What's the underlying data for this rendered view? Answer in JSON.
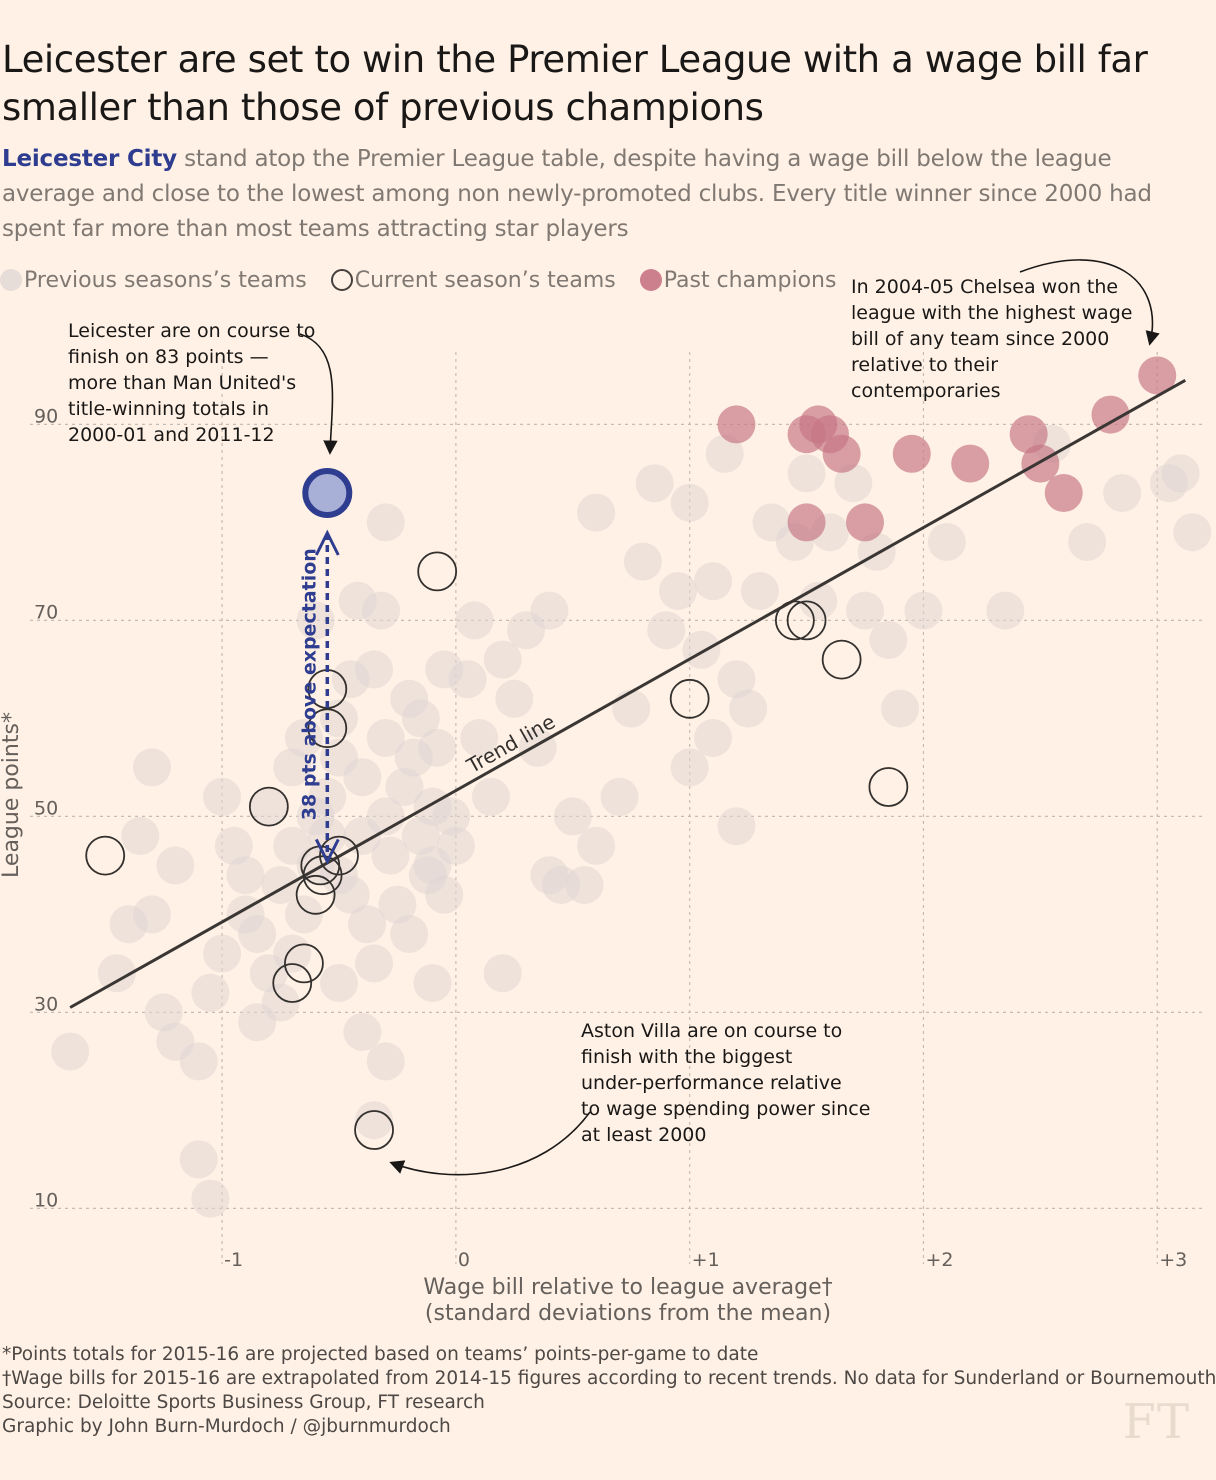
{
  "title": "Leicester are set to win the Premier League with a wage bill far smaller than those of previous champions",
  "subtitle": {
    "highlight": "Leicester City",
    "rest": " stand atop the Premier League table, despite having a wage bill below the league average and close to the lowest among non newly-promoted clubs. Every title winner since 2000 had spent far more than most teams attracting star players"
  },
  "legend": [
    {
      "label": "Previous seasons’s teams",
      "style": "prev"
    },
    {
      "label": "Current season’s teams",
      "style": "cur"
    },
    {
      "label": "Past champions",
      "style": "champ"
    }
  ],
  "colors": {
    "background": "#fff1e5",
    "previous": "#e0d6d3",
    "current_stroke": "#33302e",
    "champion": "#c67685",
    "leicester": "#2e3d8f",
    "leicester_fill": "#a9b0d8",
    "trend": "#3a3634",
    "grid": "#c6bcb3"
  },
  "chart_data": {
    "type": "scatter",
    "xlabel": "Wage bill relative to league average†",
    "xlabel2": "(standard deviations from the mean)",
    "ylabel": "League points*",
    "xlim": [
      -1.95,
      3.2
    ],
    "ylim": [
      8,
      98
    ],
    "x_ticks": [
      {
        "v": -1,
        "label": "-1"
      },
      {
        "v": 0,
        "label": "0"
      },
      {
        "v": 1,
        "label": "+1"
      },
      {
        "v": 2,
        "label": "+2"
      },
      {
        "v": 3,
        "label": "+3"
      }
    ],
    "y_ticks": [
      {
        "v": 10,
        "label": "10"
      },
      {
        "v": 30,
        "label": "30"
      },
      {
        "v": 50,
        "label": "50"
      },
      {
        "v": 70,
        "label": "70"
      },
      {
        "v": 90,
        "label": "90"
      }
    ],
    "trend_line": {
      "label": "Trend line",
      "from": [
        -1.65,
        30.5
      ],
      "to": [
        3.12,
        94.5
      ]
    },
    "series": [
      {
        "name": "Previous seasons’s teams",
        "points": [
          [
            -1.65,
            26
          ],
          [
            -1.45,
            34
          ],
          [
            -1.4,
            39
          ],
          [
            -1.3,
            40
          ],
          [
            -1.35,
            48
          ],
          [
            -1.2,
            45
          ],
          [
            -1.25,
            30
          ],
          [
            -1.2,
            27
          ],
          [
            -1.1,
            25
          ],
          [
            -1.05,
            32
          ],
          [
            -1.0,
            36
          ],
          [
            -1.0,
            52
          ],
          [
            -0.95,
            47
          ],
          [
            -0.9,
            40
          ],
          [
            -0.9,
            44
          ],
          [
            -0.85,
            38
          ],
          [
            -0.85,
            29
          ],
          [
            -0.8,
            51
          ],
          [
            -0.8,
            34
          ],
          [
            -0.75,
            31
          ],
          [
            -0.75,
            43
          ],
          [
            -0.7,
            47
          ],
          [
            -0.7,
            55
          ],
          [
            -0.7,
            36
          ],
          [
            -0.65,
            40
          ],
          [
            -0.65,
            58
          ],
          [
            -0.6,
            45
          ],
          [
            -0.6,
            50
          ],
          [
            -0.55,
            48
          ],
          [
            -0.55,
            52
          ],
          [
            -0.5,
            44
          ],
          [
            -0.5,
            56
          ],
          [
            -0.5,
            60
          ],
          [
            -0.45,
            42
          ],
          [
            -0.45,
            64
          ],
          [
            -0.42,
            72
          ],
          [
            -0.4,
            54
          ],
          [
            -0.4,
            48
          ],
          [
            -0.38,
            39
          ],
          [
            -0.35,
            35
          ],
          [
            -0.35,
            65
          ],
          [
            -0.32,
            71
          ],
          [
            -0.3,
            50
          ],
          [
            -0.3,
            58
          ],
          [
            -0.28,
            46
          ],
          [
            -0.25,
            41
          ],
          [
            -0.22,
            53
          ],
          [
            -0.2,
            62
          ],
          [
            -0.18,
            56
          ],
          [
            -0.15,
            48
          ],
          [
            -0.15,
            60
          ],
          [
            -0.12,
            44
          ],
          [
            -0.1,
            51
          ],
          [
            -0.08,
            57
          ],
          [
            -0.05,
            65
          ],
          [
            -0.05,
            42
          ],
          [
            -0.02,
            50
          ],
          [
            0.0,
            47
          ],
          [
            0.05,
            64
          ],
          [
            0.08,
            70
          ],
          [
            0.1,
            58
          ],
          [
            0.15,
            52
          ],
          [
            0.2,
            66
          ],
          [
            0.25,
            62
          ],
          [
            0.3,
            69
          ],
          [
            0.35,
            57
          ],
          [
            0.4,
            44
          ],
          [
            0.45,
            43
          ],
          [
            0.5,
            50
          ],
          [
            0.55,
            43
          ],
          [
            0.6,
            47
          ],
          [
            0.7,
            52
          ],
          [
            0.75,
            61
          ],
          [
            0.8,
            76
          ],
          [
            0.85,
            84
          ],
          [
            0.9,
            69
          ],
          [
            0.95,
            73
          ],
          [
            1.0,
            82
          ],
          [
            1.05,
            67
          ],
          [
            1.1,
            74
          ],
          [
            1.1,
            58
          ],
          [
            1.15,
            87
          ],
          [
            1.2,
            64
          ],
          [
            1.25,
            61
          ],
          [
            1.3,
            73
          ],
          [
            1.35,
            80
          ],
          [
            1.45,
            78
          ],
          [
            1.5,
            85
          ],
          [
            1.55,
            72
          ],
          [
            1.6,
            79
          ],
          [
            1.7,
            84
          ],
          [
            1.75,
            71
          ],
          [
            1.8,
            77
          ],
          [
            1.85,
            68
          ],
          [
            1.9,
            61
          ],
          [
            2.0,
            71
          ],
          [
            2.1,
            78
          ],
          [
            2.35,
            71
          ],
          [
            2.55,
            88
          ],
          [
            2.7,
            78
          ],
          [
            2.85,
            83
          ],
          [
            3.05,
            84
          ],
          [
            3.1,
            85
          ],
          [
            3.15,
            79
          ],
          [
            -0.6,
            70
          ],
          [
            -0.3,
            80
          ],
          [
            -1.3,
            55
          ],
          [
            -0.2,
            38
          ],
          [
            -0.1,
            45
          ],
          [
            0.4,
            71
          ],
          [
            1.2,
            49
          ],
          [
            1.0,
            55
          ],
          [
            0.6,
            81
          ],
          [
            -0.5,
            33
          ],
          [
            -0.4,
            28
          ],
          [
            -1.1,
            15
          ],
          [
            -1.05,
            11
          ],
          [
            -0.3,
            25
          ],
          [
            -0.35,
            19
          ],
          [
            -0.1,
            33
          ],
          [
            0.2,
            34
          ]
        ]
      },
      {
        "name": "Current season’s teams",
        "points": [
          [
            -1.5,
            46
          ],
          [
            -0.8,
            51
          ],
          [
            -0.7,
            33
          ],
          [
            -0.65,
            35
          ],
          [
            -0.6,
            42
          ],
          [
            -0.58,
            45
          ],
          [
            -0.57,
            44
          ],
          [
            -0.55,
            59
          ],
          [
            -0.55,
            63
          ],
          [
            -0.5,
            46
          ],
          [
            -0.35,
            18
          ],
          [
            -0.08,
            75
          ],
          [
            1.0,
            62
          ],
          [
            1.45,
            70
          ],
          [
            1.5,
            70
          ],
          [
            1.65,
            66
          ],
          [
            1.85,
            53
          ]
        ]
      },
      {
        "name": "Past champions",
        "points": [
          [
            1.2,
            90
          ],
          [
            1.5,
            89
          ],
          [
            1.55,
            90
          ],
          [
            1.6,
            89
          ],
          [
            1.65,
            87
          ],
          [
            1.5,
            80
          ],
          [
            1.75,
            80
          ],
          [
            1.95,
            87
          ],
          [
            2.2,
            86
          ],
          [
            2.45,
            89
          ],
          [
            2.5,
            86
          ],
          [
            2.6,
            83
          ],
          [
            2.8,
            91
          ],
          [
            3.0,
            95
          ]
        ]
      },
      {
        "name": "Leicester City",
        "points": [
          [
            -0.55,
            83
          ]
        ],
        "expected": 45
      }
    ],
    "annotations": [
      {
        "id": "leicester",
        "text": [
          "Leicester are on course to",
          "finish on 83 points —",
          "more than Man United's",
          "title-winning totals in",
          "2000-01 and 2011-12"
        ]
      },
      {
        "id": "chelsea",
        "text": [
          "In 2004-05 Chelsea won the",
          "league with the highest wage",
          "bill of any team since 2000",
          "relative to their",
          "contemporaries"
        ]
      },
      {
        "id": "villa",
        "text": [
          "Aston Villa are on course to",
          "finish with the biggest",
          "under-performance relative",
          "to wage spending power since",
          "at least 2000"
        ]
      },
      {
        "id": "gap",
        "text": [
          "38 pts above expectation"
        ]
      }
    ]
  },
  "footnotes": [
    "*Points totals for 2015-16 are projected based on teams’ points-per-game to date",
    "†Wage bills for 2015-16 are extrapolated from 2014-15 figures according to recent trends. No data for Sunderland or Bournemouth",
    "Source: Deloitte Sports Business Group, FT research",
    "Graphic by John Burn-Murdoch / @jburnmurdoch"
  ],
  "logo": "FT"
}
